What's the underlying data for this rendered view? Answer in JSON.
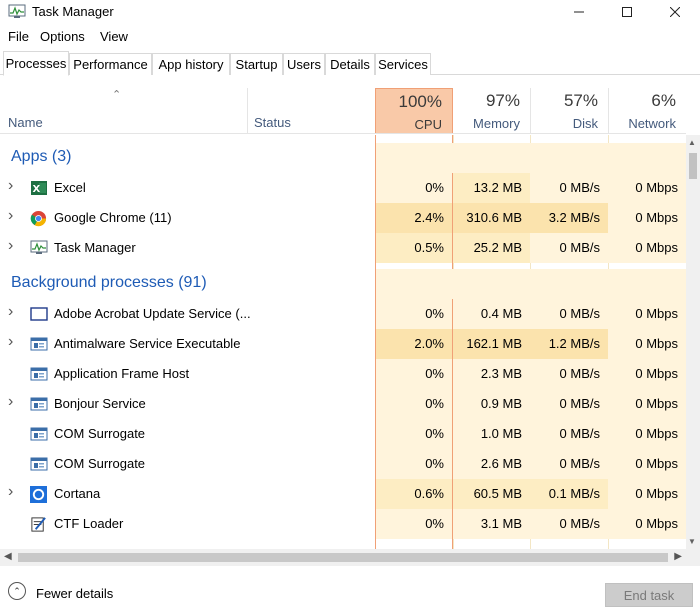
{
  "window": {
    "title": "Task Manager"
  },
  "menu": [
    "File",
    "Options",
    "View"
  ],
  "tabs": [
    "Processes",
    "Performance",
    "App history",
    "Startup",
    "Users",
    "Details",
    "Services"
  ],
  "active_tab": "Processes",
  "columns": {
    "name": "Name",
    "status": "Status",
    "cpu": {
      "percent": "100%",
      "label": "CPU"
    },
    "memory": {
      "percent": "97%",
      "label": "Memory"
    },
    "disk": {
      "percent": "57%",
      "label": "Disk"
    },
    "network": {
      "percent": "6%",
      "label": "Network"
    }
  },
  "groups": {
    "apps": {
      "title": "Apps (3)",
      "rows": [
        {
          "name": "Excel",
          "icon": "excel-icon",
          "expandable": true,
          "cpu": "0%",
          "memory": "13.2 MB",
          "disk": "0 MB/s",
          "network": "0 Mbps"
        },
        {
          "name": "Google Chrome (11)",
          "icon": "chrome-icon",
          "expandable": true,
          "cpu": "2.4%",
          "memory": "310.6 MB",
          "disk": "3.2 MB/s",
          "network": "0 Mbps"
        },
        {
          "name": "Task Manager",
          "icon": "task-manager-icon",
          "expandable": true,
          "cpu": "0.5%",
          "memory": "25.2 MB",
          "disk": "0 MB/s",
          "network": "0 Mbps"
        }
      ]
    },
    "background": {
      "title": "Background processes (91)",
      "rows": [
        {
          "name": "Adobe Acrobat Update Service (...",
          "icon": "window-icon",
          "expandable": true,
          "cpu": "0%",
          "memory": "0.4 MB",
          "disk": "0 MB/s",
          "network": "0 Mbps"
        },
        {
          "name": "Antimalware Service Executable",
          "icon": "service-icon",
          "expandable": true,
          "cpu": "2.0%",
          "memory": "162.1 MB",
          "disk": "1.2 MB/s",
          "network": "0 Mbps"
        },
        {
          "name": "Application Frame Host",
          "icon": "service-icon",
          "expandable": false,
          "cpu": "0%",
          "memory": "2.3 MB",
          "disk": "0 MB/s",
          "network": "0 Mbps"
        },
        {
          "name": "Bonjour Service",
          "icon": "service-icon",
          "expandable": true,
          "cpu": "0%",
          "memory": "0.9 MB",
          "disk": "0 MB/s",
          "network": "0 Mbps"
        },
        {
          "name": "COM Surrogate",
          "icon": "service-icon",
          "expandable": false,
          "cpu": "0%",
          "memory": "1.0 MB",
          "disk": "0 MB/s",
          "network": "0 Mbps"
        },
        {
          "name": "COM Surrogate",
          "icon": "service-icon",
          "expandable": false,
          "cpu": "0%",
          "memory": "2.6 MB",
          "disk": "0 MB/s",
          "network": "0 Mbps"
        },
        {
          "name": "Cortana",
          "icon": "cortana-icon",
          "expandable": true,
          "cpu": "0.6%",
          "memory": "60.5 MB",
          "disk": "0.1 MB/s",
          "network": "0 Mbps"
        },
        {
          "name": "CTF Loader",
          "icon": "ctf-loader-icon",
          "expandable": false,
          "cpu": "0%",
          "memory": "3.1 MB",
          "disk": "0 MB/s",
          "network": "0 Mbps"
        }
      ]
    }
  },
  "footer": {
    "fewer_details": "Fewer details",
    "end_task": "End task"
  },
  "colors": {
    "accent_blue": "#1e5bb5",
    "heat_light": "#fff4dc",
    "heat_medium": "#fdedc3",
    "heat_strong": "#fbe3ad",
    "cpu_header": "#f9c9a8",
    "cpu_border": "#f0a076"
  }
}
